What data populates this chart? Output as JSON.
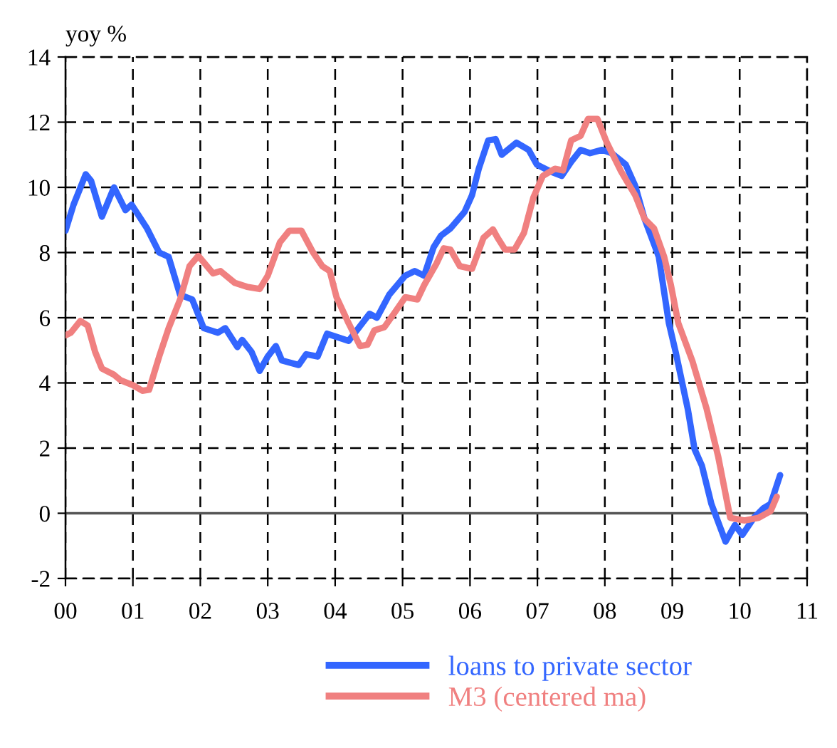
{
  "chart_data": {
    "type": "line",
    "ylabel": "yoy %",
    "xlim": [
      0,
      11
    ],
    "xticks": [
      {
        "value": 0,
        "label": "00"
      },
      {
        "value": 1,
        "label": "01"
      },
      {
        "value": 2,
        "label": "02"
      },
      {
        "value": 3,
        "label": "03"
      },
      {
        "value": 4,
        "label": "04"
      },
      {
        "value": 5,
        "label": "05"
      },
      {
        "value": 6,
        "label": "06"
      },
      {
        "value": 7,
        "label": "07"
      },
      {
        "value": 8,
        "label": "08"
      },
      {
        "value": 9,
        "label": "09"
      },
      {
        "value": 10,
        "label": "10"
      },
      {
        "value": 11,
        "label": "11"
      }
    ],
    "ylim": [
      -2,
      14
    ],
    "yticks": [
      -2,
      0,
      2,
      4,
      6,
      8,
      10,
      12,
      14
    ],
    "grid": true,
    "legend": "bottom",
    "line_style": "solid",
    "marker": "none",
    "ref_lines": [
      {
        "axis": "y",
        "value": 0,
        "color": "#555555",
        "line_style": "solid"
      }
    ],
    "series": [
      {
        "name": "loans to private sector",
        "color": "#3366ff",
        "x": [
          0,
          0.12,
          0.3,
          0.38,
          0.54,
          0.72,
          0.89,
          0.98,
          1.21,
          1.39,
          1.53,
          1.7,
          1.88,
          2.05,
          2.26,
          2.37,
          2.55,
          2.62,
          2.76,
          2.88,
          3.0,
          3.12,
          3.21,
          3.46,
          3.57,
          3.74,
          3.88,
          4.2,
          4.51,
          4.62,
          4.8,
          5.04,
          5.18,
          5.32,
          5.46,
          5.57,
          5.71,
          5.92,
          6.03,
          6.13,
          6.27,
          6.38,
          6.47,
          6.69,
          6.87,
          6.99,
          7.19,
          7.36,
          7.5,
          7.64,
          7.78,
          7.96,
          8.1,
          8.31,
          8.45,
          8.59,
          8.8,
          8.95,
          9.05,
          9.23,
          9.33,
          9.44,
          9.58,
          9.79,
          9.93,
          10.04,
          10.21,
          10.35,
          10.46,
          10.6
        ],
        "values": [
          8.67,
          9.47,
          10.4,
          10.2,
          9.1,
          10.0,
          9.3,
          9.47,
          8.74,
          8.0,
          7.87,
          6.7,
          6.56,
          5.68,
          5.54,
          5.68,
          5.1,
          5.32,
          4.95,
          4.37,
          4.81,
          5.13,
          4.69,
          4.55,
          4.88,
          4.81,
          5.51,
          5.29,
          6.12,
          6.0,
          6.7,
          7.29,
          7.43,
          7.29,
          8.16,
          8.52,
          8.74,
          9.25,
          9.76,
          10.57,
          11.44,
          11.48,
          11.0,
          11.37,
          11.15,
          10.7,
          10.49,
          10.35,
          10.78,
          11.15,
          11.05,
          11.15,
          11.05,
          10.7,
          10.05,
          9.03,
          7.87,
          5.83,
          4.95,
          3.2,
          1.97,
          1.46,
          0.29,
          -0.87,
          -0.36,
          -0.66,
          -0.14,
          0.15,
          0.29,
          1.17
        ]
      },
      {
        "name": "M3 (centered ma)",
        "color": "#f08080",
        "x": [
          0,
          0.08,
          0.22,
          0.33,
          0.44,
          0.54,
          0.72,
          0.82,
          1.0,
          1.14,
          1.24,
          1.39,
          1.53,
          1.7,
          1.84,
          1.97,
          2.19,
          2.3,
          2.51,
          2.69,
          2.88,
          3.0,
          3.18,
          3.32,
          3.5,
          3.67,
          3.81,
          3.92,
          4.02,
          4.2,
          4.37,
          4.48,
          4.58,
          4.73,
          4.87,
          5.04,
          5.22,
          5.32,
          5.5,
          5.61,
          5.71,
          5.85,
          6.03,
          6.2,
          6.34,
          6.41,
          6.52,
          6.66,
          6.8,
          6.94,
          7.08,
          7.26,
          7.38,
          7.5,
          7.64,
          7.75,
          7.89,
          8.03,
          8.24,
          8.45,
          8.59,
          8.73,
          8.88,
          8.98,
          9.09,
          9.3,
          9.51,
          9.68,
          9.86,
          10.07,
          10.28,
          10.46,
          10.55
        ],
        "values": [
          5.46,
          5.54,
          5.9,
          5.76,
          4.95,
          4.44,
          4.25,
          4.08,
          3.93,
          3.76,
          3.79,
          4.81,
          5.68,
          6.56,
          7.58,
          7.9,
          7.36,
          7.43,
          7.07,
          6.95,
          6.88,
          7.29,
          8.31,
          8.67,
          8.67,
          8.01,
          7.58,
          7.43,
          6.63,
          5.83,
          5.13,
          5.17,
          5.61,
          5.71,
          6.12,
          6.63,
          6.56,
          7.0,
          7.65,
          8.13,
          8.09,
          7.58,
          7.5,
          8.45,
          8.71,
          8.45,
          8.09,
          8.09,
          8.6,
          9.69,
          10.35,
          10.57,
          10.52,
          11.44,
          11.58,
          12.1,
          12.1,
          11.37,
          10.49,
          9.76,
          9.03,
          8.74,
          7.87,
          7.0,
          5.83,
          4.66,
          3.2,
          1.75,
          -0.14,
          -0.22,
          -0.14,
          0.07,
          0.51
        ]
      }
    ]
  }
}
